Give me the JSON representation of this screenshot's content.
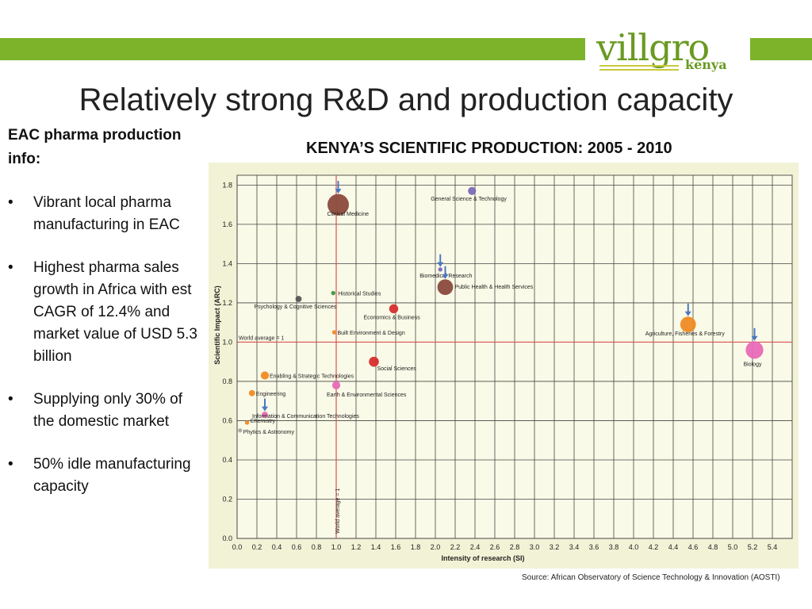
{
  "slide": {
    "title": "Relatively strong R&D and production capacity",
    "left_heading": "EAC pharma production info:",
    "bullets": [
      "Vibrant local pharma manufacturing in EAC",
      "Highest pharma sales growth in Africa with est CAGR of 12.4% and market value of USD 5.3 billion",
      "Supplying only 30% of the domestic market",
      "50% idle manufacturing capacity"
    ],
    "source": "Source: African Observatory of Science Technology & Innovation (AOSTI)"
  },
  "logo": {
    "brand": "villgro",
    "sub": "kenya"
  },
  "colors": {
    "band": "#7cb32a",
    "grid": "#444444",
    "reference": "#d9534f"
  },
  "chart_data": {
    "type": "scatter",
    "title": "KENYA’S SCIENTIFIC PRODUCTION: 2005 - 2010",
    "xlabel": "Intensity of research (SI)",
    "ylabel": "Scientific Impact (ARC)",
    "xlim": [
      0,
      5.6
    ],
    "ylim": [
      0,
      1.85
    ],
    "x_ticks": [
      "0.0",
      "0.2",
      "0.4",
      "0.6",
      "0.8",
      "1.0",
      "1.2",
      "1.4",
      "1.6",
      "1.8",
      "2.0",
      "2.2",
      "2.4",
      "2.6",
      "2.8",
      "3.0",
      "3.2",
      "3.4",
      "3.6",
      "3.8",
      "4.0",
      "4.2",
      "4.4",
      "4.6",
      "4.8",
      "5.0",
      "5.2",
      "5.4"
    ],
    "y_ticks": [
      "0.0",
      "0.2",
      "0.4",
      "0.6",
      "0.8",
      "1.0",
      "1.2",
      "1.4",
      "1.6",
      "1.8"
    ],
    "grid": true,
    "reference_lines": {
      "horizontal": {
        "value": 1.0,
        "label": "World average = 1"
      },
      "vertical": {
        "value": 1.0,
        "label": "World average = 1"
      }
    },
    "points": [
      {
        "label": "Clinical Medicine",
        "x": 1.02,
        "y": 1.7,
        "size": 10,
        "color": "#8b4a3c",
        "arrow": "down"
      },
      {
        "label": "General Science & Technology",
        "x": 2.37,
        "y": 1.77,
        "size": 3,
        "color": "#7b68b5"
      },
      {
        "label": "Biomedical Research",
        "x": 2.05,
        "y": 1.37,
        "size": 1,
        "color": "#7b68b5",
        "arrow": "down"
      },
      {
        "label": "Public Health & Health Services",
        "x": 2.1,
        "y": 1.28,
        "size": 7,
        "color": "#8b4a3c",
        "arrow": "down"
      },
      {
        "label": "Historical Studies",
        "x": 0.97,
        "y": 1.25,
        "size": 1,
        "color": "#3c9a3c"
      },
      {
        "label": "Psychology & Cognitive Sciences",
        "x": 0.62,
        "y": 1.22,
        "size": 2,
        "color": "#555555"
      },
      {
        "label": "Economics & Business",
        "x": 1.58,
        "y": 1.17,
        "size": 3.5,
        "color": "#d62e2e"
      },
      {
        "label": "Built Environment & Design",
        "x": 0.98,
        "y": 1.05,
        "size": 1,
        "color": "#f08a24"
      },
      {
        "label": "Agriculture, Fisheries & Forestry",
        "x": 4.55,
        "y": 1.09,
        "size": 7,
        "color": "#f08a24",
        "arrow": "down"
      },
      {
        "label": "Biology",
        "x": 5.22,
        "y": 0.96,
        "size": 8,
        "color": "#e86ab8",
        "arrow": "down"
      },
      {
        "label": "Social Sciences",
        "x": 1.38,
        "y": 0.9,
        "size": 4,
        "color": "#d62e2e"
      },
      {
        "label": "Enabling & Strategic Technologies",
        "x": 0.28,
        "y": 0.83,
        "size": 3,
        "color": "#f08a24"
      },
      {
        "label": "Earth & Environmental Sciences",
        "x": 1.0,
        "y": 0.78,
        "size": 3,
        "color": "#e86ab8"
      },
      {
        "label": "Engineering",
        "x": 0.15,
        "y": 0.74,
        "size": 2,
        "color": "#f08a24"
      },
      {
        "label": "Information & Communication Technologies",
        "x": 0.28,
        "y": 0.63,
        "size": 2,
        "color": "#e86ab8",
        "arrow": "down"
      },
      {
        "label": "Chemistry",
        "x": 0.1,
        "y": 0.59,
        "size": 1,
        "color": "#f08a24"
      },
      {
        "label": "Phytics & Astronomy",
        "x": 0.03,
        "y": 0.55,
        "size": 1,
        "color": "#aaaaaa"
      }
    ]
  }
}
